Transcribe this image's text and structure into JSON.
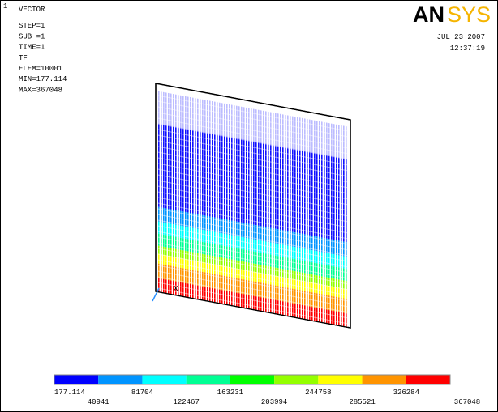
{
  "window_number": "1",
  "info": [
    "VECTOR",
    "STEP=1",
    "SUB =1",
    "TIME=1",
    "TF",
    "ELEM=10001",
    "MIN=177.114",
    "MAX=367048"
  ],
  "logo": {
    "left": "AN",
    "right": "SYS"
  },
  "date": "JUL 23 2007",
  "time": "12:37:19",
  "axis_label": "X",
  "legend": {
    "colors": [
      "#0000ff",
      "#0094ff",
      "#00ffff",
      "#00ff94",
      "#00ff00",
      "#94ff00",
      "#ffff00",
      "#ff9400",
      "#ff0000"
    ],
    "labels": [
      "177.114",
      "40941",
      "81704",
      "122467",
      "163231",
      "203994",
      "244758",
      "285521",
      "326284",
      "367048"
    ]
  }
}
